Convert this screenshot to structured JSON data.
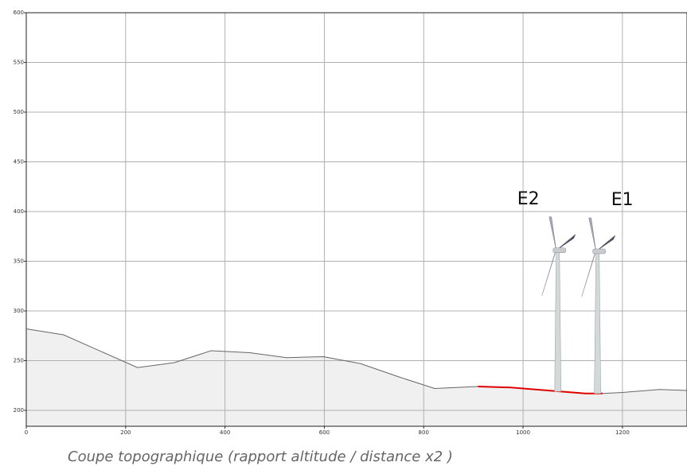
{
  "chart_data": {
    "type": "area",
    "caption": "Coupe topographique (rapport altitude / distance x2 )",
    "xlim": [
      0,
      1330
    ],
    "ylim": [
      184,
      600
    ],
    "xticks": [
      0,
      200,
      400,
      600,
      800,
      1000,
      1200
    ],
    "yticks": [
      200,
      250,
      300,
      350,
      400,
      450,
      500,
      550,
      600
    ],
    "grid": true,
    "fill": "#f0f0f0",
    "series": [
      {
        "color": "#666666",
        "x": [
          0,
          75,
          224,
          298,
          372,
          450,
          524,
          598,
          673,
          748,
          822,
          909
        ],
        "values": [
          282,
          276,
          243,
          248,
          260,
          258,
          253,
          254,
          247,
          234,
          222,
          224
        ]
      },
      {
        "color": "#e00000",
        "x": [
          909,
          975,
          1025,
          1075,
          1125,
          1160
        ],
        "values": [
          224,
          223,
          221,
          219,
          217,
          217
        ]
      },
      {
        "color": "#666666",
        "x": [
          1160,
          1200,
          1275,
          1330
        ],
        "values": [
          217,
          218,
          221,
          220
        ]
      }
    ],
    "turbines": [
      {
        "label": "E2",
        "x": 1070,
        "hub": 361,
        "base": 219
      },
      {
        "label": "E1",
        "x": 1150,
        "hub": 360,
        "base": 217
      }
    ]
  }
}
